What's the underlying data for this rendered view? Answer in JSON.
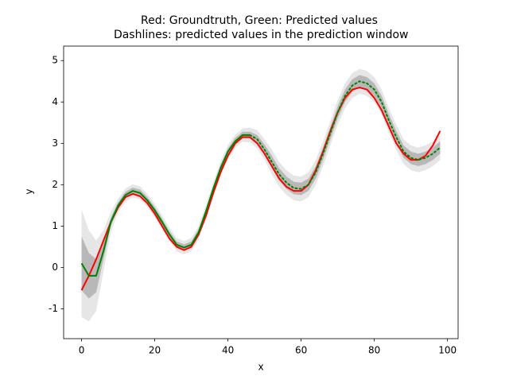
{
  "chart_data": {
    "type": "line",
    "title": [
      "Red: Groundtruth, Green: Predicted values",
      " Dashlines: predicted values in the prediction window"
    ],
    "x_label": "x",
    "y_label": "y",
    "xlim": [
      -4.9,
      102.9
    ],
    "ylim": [
      -1.72,
      5.35
    ],
    "xticks": [
      0,
      20,
      40,
      60,
      80,
      100
    ],
    "yticks": [
      -1,
      0,
      1,
      2,
      3,
      4,
      5
    ],
    "grid": false,
    "x": [
      0,
      2,
      4,
      6,
      8,
      10,
      12,
      14,
      16,
      18,
      20,
      22,
      24,
      26,
      28,
      30,
      32,
      34,
      36,
      38,
      40,
      42,
      44,
      46,
      48,
      50,
      52,
      54,
      56,
      58,
      60,
      62,
      64,
      66,
      68,
      70,
      72,
      74,
      76,
      78,
      80,
      82,
      84,
      86,
      88,
      90,
      92,
      94,
      96,
      98
    ],
    "bands": [
      {
        "color": "#808080",
        "opacity": 0.2,
        "lower": [
          -1.2,
          -1.3,
          -1.05,
          -0.1,
          0.85,
          1.34,
          1.59,
          1.69,
          1.64,
          1.46,
          1.22,
          0.94,
          0.64,
          0.39,
          0.32,
          0.39,
          0.69,
          1.19,
          1.74,
          2.24,
          2.64,
          2.89,
          3.04,
          3.02,
          2.88,
          2.6,
          2.25,
          1.95,
          1.75,
          1.62,
          1.6,
          1.7,
          2.0,
          2.45,
          2.95,
          3.45,
          3.85,
          4.1,
          4.2,
          4.15,
          4.0,
          3.7,
          3.25,
          2.85,
          2.5,
          2.35,
          2.3,
          2.35,
          2.45,
          2.6
        ],
        "upper": [
          1.4,
          0.9,
          0.65,
          0.9,
          1.35,
          1.66,
          1.91,
          2.01,
          1.96,
          1.78,
          1.54,
          1.26,
          0.96,
          0.71,
          0.64,
          0.71,
          1.01,
          1.51,
          2.06,
          2.56,
          2.96,
          3.21,
          3.36,
          3.38,
          3.32,
          3.1,
          2.85,
          2.55,
          2.35,
          2.22,
          2.2,
          2.3,
          2.6,
          3.05,
          3.55,
          4.05,
          4.45,
          4.7,
          4.8,
          4.75,
          4.6,
          4.3,
          3.85,
          3.45,
          3.1,
          2.95,
          2.9,
          2.95,
          3.05,
          3.2
        ]
      },
      {
        "color": "#808080",
        "opacity": 0.45,
        "lower": [
          -0.55,
          -0.75,
          -0.6,
          0.2,
          1.0,
          1.42,
          1.67,
          1.77,
          1.72,
          1.54,
          1.3,
          1.02,
          0.72,
          0.47,
          0.4,
          0.47,
          0.77,
          1.27,
          1.82,
          2.32,
          2.72,
          2.97,
          3.12,
          3.12,
          3.0,
          2.73,
          2.4,
          2.1,
          1.9,
          1.77,
          1.75,
          1.85,
          2.15,
          2.6,
          3.1,
          3.6,
          4.0,
          4.25,
          4.35,
          4.3,
          4.15,
          3.85,
          3.4,
          3.0,
          2.65,
          2.5,
          2.45,
          2.5,
          2.6,
          2.75
        ],
        "upper": [
          0.75,
          0.35,
          0.2,
          0.6,
          1.2,
          1.58,
          1.83,
          1.93,
          1.88,
          1.7,
          1.46,
          1.18,
          0.88,
          0.63,
          0.56,
          0.63,
          0.93,
          1.43,
          1.98,
          2.48,
          2.88,
          3.13,
          3.28,
          3.28,
          3.2,
          2.97,
          2.7,
          2.4,
          2.2,
          2.07,
          2.05,
          2.15,
          2.45,
          2.9,
          3.4,
          3.9,
          4.3,
          4.55,
          4.65,
          4.6,
          4.45,
          4.15,
          3.7,
          3.3,
          2.95,
          2.8,
          2.75,
          2.8,
          2.9,
          3.05
        ]
      }
    ],
    "series": [
      {
        "color": "#ff0000",
        "style": "solid",
        "values": [
          -0.55,
          -0.2,
          0.2,
          0.65,
          1.1,
          1.45,
          1.7,
          1.78,
          1.72,
          1.55,
          1.3,
          1.0,
          0.7,
          0.5,
          0.42,
          0.5,
          0.8,
          1.25,
          1.8,
          2.3,
          2.7,
          3.0,
          3.15,
          3.15,
          3.0,
          2.75,
          2.45,
          2.15,
          1.95,
          1.85,
          1.85,
          2.0,
          2.35,
          2.8,
          3.3,
          3.75,
          4.1,
          4.3,
          4.35,
          4.3,
          4.1,
          3.8,
          3.4,
          3.0,
          2.75,
          2.6,
          2.6,
          2.7,
          2.95,
          3.3
        ]
      },
      {
        "color": "#008000",
        "style": "solid",
        "values": [
          0.1,
          -0.2,
          -0.2,
          0.4,
          1.1,
          1.5,
          1.75,
          1.85,
          1.8,
          1.62,
          1.38,
          1.1,
          0.8,
          0.55,
          0.48,
          0.55,
          0.85,
          1.35,
          1.9,
          2.4,
          2.8,
          3.05,
          3.2,
          3.2,
          null,
          null,
          null,
          null,
          null,
          null,
          null,
          null,
          null,
          null,
          null,
          null,
          null,
          null,
          null,
          null,
          null,
          null,
          null,
          null,
          null,
          null,
          null,
          null,
          null,
          null
        ]
      },
      {
        "color": "#008000",
        "style": "dotted",
        "values": [
          null,
          null,
          null,
          null,
          null,
          null,
          null,
          null,
          null,
          null,
          null,
          null,
          null,
          null,
          null,
          null,
          null,
          null,
          null,
          null,
          null,
          null,
          null,
          3.2,
          3.1,
          2.85,
          2.55,
          2.25,
          2.05,
          1.92,
          1.9,
          2.0,
          2.3,
          2.75,
          3.25,
          3.75,
          4.15,
          4.4,
          4.5,
          4.45,
          4.3,
          4.0,
          3.55,
          3.15,
          2.8,
          2.65,
          2.6,
          2.65,
          2.75,
          2.9
        ]
      }
    ]
  }
}
